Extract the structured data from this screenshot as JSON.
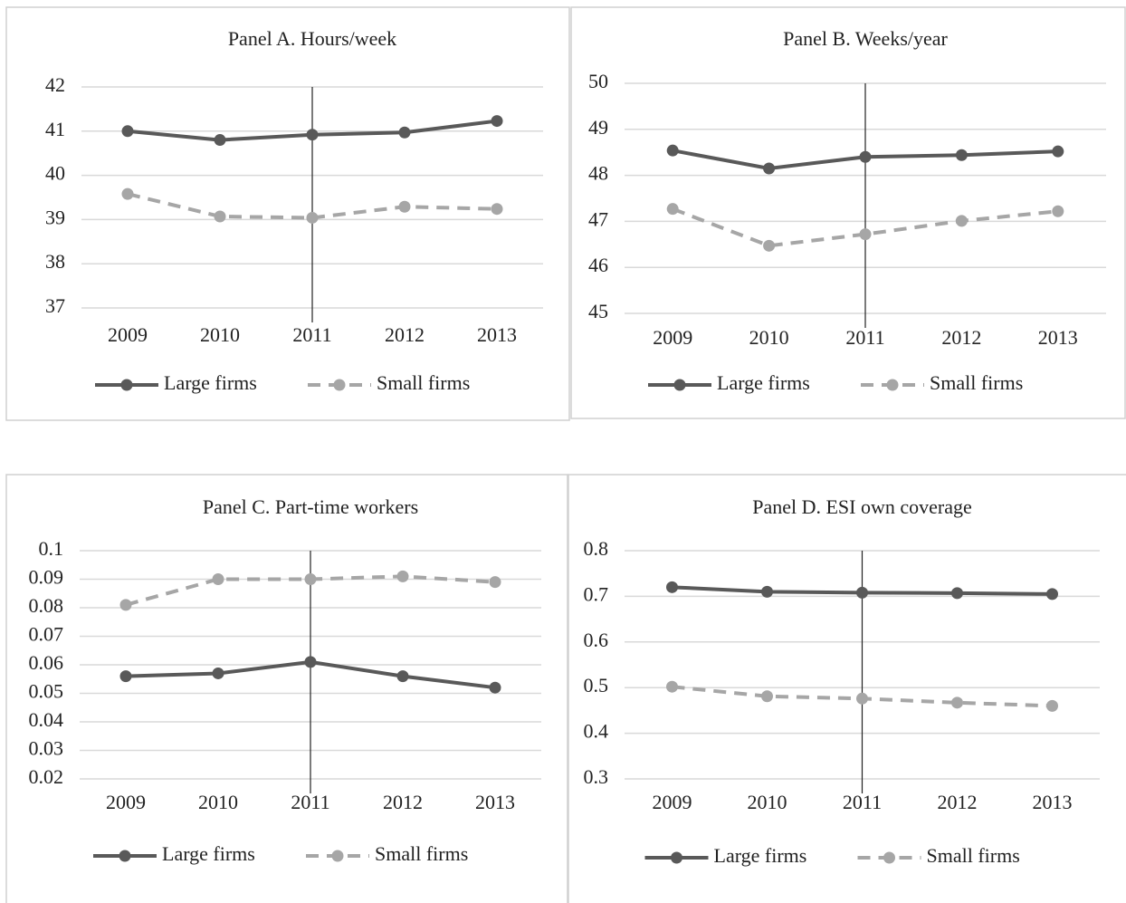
{
  "chart_data": [
    {
      "type": "line",
      "title": "Panel A. Hours/week",
      "categories": [
        "2009",
        "2010",
        "2011",
        "2012",
        "2013"
      ],
      "series": [
        {
          "name": "Large firms",
          "color": "#595959",
          "dashed": false,
          "values": [
            41.0,
            40.8,
            40.92,
            40.97,
            41.23
          ]
        },
        {
          "name": "Small firms",
          "color": "#a6a6a6",
          "dashed": true,
          "values": [
            39.58,
            39.07,
            39.04,
            39.29,
            39.24
          ]
        }
      ],
      "ylim": [
        37,
        42
      ],
      "yticks": [
        37,
        38,
        39,
        40,
        41,
        42
      ],
      "grid": true,
      "vline": "2011",
      "legend": "bottom"
    },
    {
      "type": "line",
      "title": "Panel B. Weeks/year",
      "categories": [
        "2009",
        "2010",
        "2011",
        "2012",
        "2013"
      ],
      "series": [
        {
          "name": "Large firms",
          "color": "#595959",
          "dashed": false,
          "values": [
            48.54,
            48.15,
            48.4,
            48.44,
            48.52
          ]
        },
        {
          "name": "Small firms",
          "color": "#a6a6a6",
          "dashed": true,
          "values": [
            47.27,
            46.47,
            46.72,
            47.01,
            47.22
          ]
        }
      ],
      "ylim": [
        45,
        50
      ],
      "yticks": [
        45,
        46,
        47,
        48,
        49,
        50
      ],
      "grid": true,
      "vline": "2011",
      "legend": "bottom"
    },
    {
      "type": "line",
      "title": "Panel C. Part-time workers",
      "categories": [
        "2009",
        "2010",
        "2011",
        "2012",
        "2013"
      ],
      "series": [
        {
          "name": "Large firms",
          "color": "#595959",
          "dashed": false,
          "values": [
            0.056,
            0.057,
            0.061,
            0.056,
            0.052
          ]
        },
        {
          "name": "Small firms",
          "color": "#a6a6a6",
          "dashed": true,
          "values": [
            0.081,
            0.09,
            0.09,
            0.091,
            0.089
          ]
        }
      ],
      "ylim": [
        0.02,
        0.1
      ],
      "yticks": [
        0.02,
        0.03,
        0.04,
        0.05,
        0.06,
        0.07,
        0.08,
        0.09,
        0.1
      ],
      "grid": true,
      "vline": "2011",
      "legend": "bottom"
    },
    {
      "type": "line",
      "title": "Panel D. ESI own coverage",
      "categories": [
        "2009",
        "2010",
        "2011",
        "2012",
        "2013"
      ],
      "series": [
        {
          "name": "Large firms",
          "color": "#595959",
          "dashed": false,
          "values": [
            0.72,
            0.71,
            0.708,
            0.707,
            0.705
          ]
        },
        {
          "name": "Small firms",
          "color": "#a6a6a6",
          "dashed": true,
          "values": [
            0.502,
            0.481,
            0.476,
            0.467,
            0.46
          ]
        }
      ],
      "ylim": [
        0.3,
        0.8
      ],
      "yticks": [
        0.3,
        0.4,
        0.5,
        0.6,
        0.7,
        0.8
      ],
      "grid": true,
      "vline": "2011",
      "legend": "bottom"
    }
  ]
}
